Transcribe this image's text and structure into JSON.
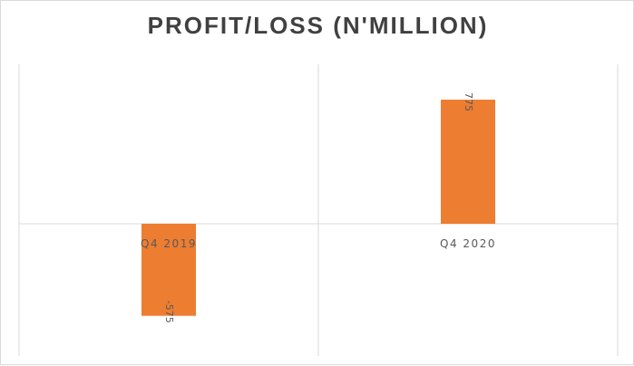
{
  "chart_data": {
    "type": "bar",
    "title": "PROFIT/LOSS (N'MILLION)",
    "categories": [
      "Q4 2019",
      "Q4 2020"
    ],
    "values": [
      -575,
      775
    ],
    "data_labels": [
      "-575",
      "775"
    ],
    "ylim": [
      -800,
      1000
    ],
    "bar_color": "#ed7d31",
    "grid": true,
    "legend": "none",
    "xlabel": "",
    "ylabel": ""
  }
}
